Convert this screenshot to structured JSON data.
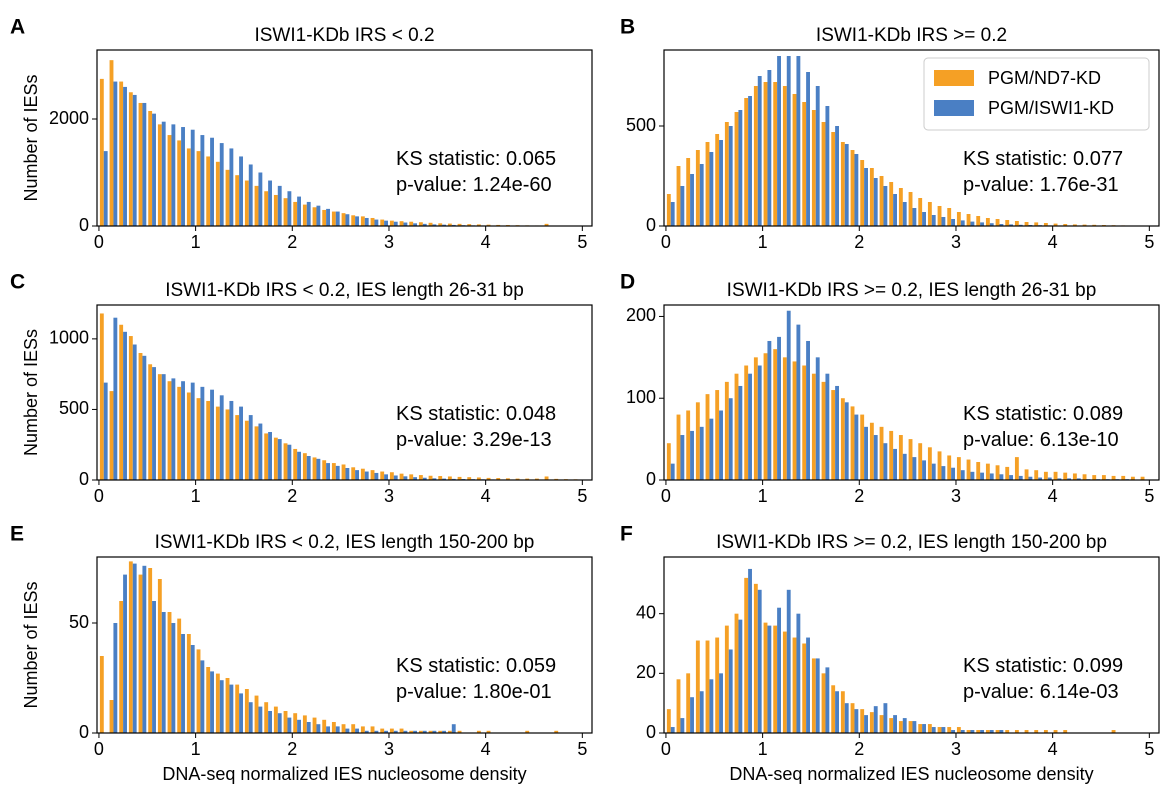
{
  "chart_data": [
    {
      "type": "histogram",
      "panel_label": "A",
      "title": "ISWI1-KDb IRS < 0.2",
      "y_label": "Number of IESs",
      "bins": [
        0,
        0.1,
        0.2,
        0.3,
        0.4,
        0.5,
        0.6,
        0.7,
        0.8,
        0.9,
        1,
        1.1,
        1.2,
        1.3,
        1.4,
        1.5,
        1.6,
        1.7,
        1.8,
        1.9,
        2,
        2.1,
        2.2,
        2.3,
        2.4,
        2.5,
        2.6,
        2.7,
        2.8,
        2.9,
        3,
        3.1,
        3.2,
        3.3,
        3.4,
        3.5,
        3.6,
        3.7,
        3.8,
        3.9,
        4,
        4.1,
        4.2,
        4.3,
        4.4,
        4.5,
        4.6,
        4.7,
        4.8,
        4.9,
        5
      ],
      "series": [
        {
          "color": "#f5a025",
          "values": [
            2750,
            3100,
            2700,
            2500,
            2300,
            2150,
            1900,
            1700,
            1600,
            1450,
            1400,
            1300,
            1200,
            1050,
            950,
            850,
            750,
            650,
            580,
            520,
            450,
            400,
            350,
            300,
            270,
            240,
            200,
            180,
            150,
            120,
            100,
            90,
            80,
            70,
            60,
            50,
            45,
            40,
            35,
            30,
            25,
            20,
            18,
            15,
            12,
            10,
            40,
            8,
            5,
            5
          ]
        },
        {
          "color": "#4a7fc4",
          "values": [
            1400,
            2700,
            2600,
            2450,
            2300,
            2100,
            1950,
            1900,
            1850,
            1800,
            1700,
            1650,
            1550,
            1450,
            1300,
            1150,
            1000,
            850,
            750,
            650,
            550,
            450,
            380,
            320,
            270,
            220,
            180,
            150,
            120,
            100,
            80,
            65,
            50,
            40,
            30,
            25,
            20,
            15,
            12,
            10,
            8,
            6,
            5,
            4,
            3,
            2,
            2,
            1,
            1,
            1
          ]
        }
      ],
      "xlim": [
        -0.02,
        5.1
      ],
      "xticks": [
        0,
        1,
        2,
        3,
        4,
        5
      ],
      "ylim": [
        0,
        3290
      ],
      "yticks": [
        0,
        2000
      ],
      "annotations": [
        "KS statistic: 0.065",
        "p-value: 1.24e-60"
      ]
    },
    {
      "type": "histogram",
      "panel_label": "B",
      "title": "ISWI1-KDb IRS >= 0.2",
      "bins": [
        0,
        0.1,
        0.2,
        0.3,
        0.4,
        0.5,
        0.6,
        0.7,
        0.8,
        0.9,
        1,
        1.1,
        1.2,
        1.3,
        1.4,
        1.5,
        1.6,
        1.7,
        1.8,
        1.9,
        2,
        2.1,
        2.2,
        2.3,
        2.4,
        2.5,
        2.6,
        2.7,
        2.8,
        2.9,
        3,
        3.1,
        3.2,
        3.3,
        3.4,
        3.5,
        3.6,
        3.7,
        3.8,
        3.9,
        4,
        4.1,
        4.2,
        4.3,
        4.4,
        4.5,
        4.6,
        4.7,
        4.8,
        4.9,
        5
      ],
      "series": [
        {
          "name": "PGM/ND7-KD",
          "color": "#f5a025",
          "values": [
            160,
            300,
            340,
            380,
            420,
            460,
            520,
            570,
            640,
            700,
            720,
            720,
            700,
            660,
            620,
            580,
            520,
            470,
            420,
            380,
            330,
            290,
            250,
            220,
            190,
            170,
            140,
            120,
            100,
            90,
            70,
            60,
            50,
            40,
            35,
            30,
            25,
            20,
            18,
            15,
            12,
            10,
            8,
            7,
            6,
            5,
            4,
            3,
            2,
            2
          ]
        },
        {
          "name": "PGM/ISWI1-KD",
          "color": "#4a7fc4",
          "values": [
            120,
            200,
            260,
            310,
            370,
            430,
            500,
            580,
            650,
            750,
            780,
            850,
            850,
            850,
            770,
            700,
            600,
            500,
            410,
            360,
            290,
            240,
            200,
            160,
            120,
            90,
            70,
            55,
            45,
            35,
            28,
            22,
            18,
            14,
            10,
            8,
            6,
            5,
            4,
            3,
            2,
            2,
            1,
            1,
            1,
            1,
            0,
            0,
            0,
            0
          ]
        }
      ],
      "xlim": [
        -0.02,
        5.1
      ],
      "xticks": [
        0,
        1,
        2,
        3,
        4,
        5
      ],
      "ylim": [
        0,
        880
      ],
      "yticks": [
        0,
        500
      ],
      "legend": "upper right",
      "annotations": [
        "KS statistic: 0.077",
        "p-value: 1.76e-31"
      ]
    },
    {
      "type": "histogram",
      "panel_label": "C",
      "title": "ISWI1-KDb IRS < 0.2, IES length 26-31 bp",
      "y_label": "Number of IESs",
      "bins": [
        0,
        0.1,
        0.2,
        0.3,
        0.4,
        0.5,
        0.6,
        0.7,
        0.8,
        0.9,
        1,
        1.1,
        1.2,
        1.3,
        1.4,
        1.5,
        1.6,
        1.7,
        1.8,
        1.9,
        2,
        2.1,
        2.2,
        2.3,
        2.4,
        2.5,
        2.6,
        2.7,
        2.8,
        2.9,
        3,
        3.1,
        3.2,
        3.3,
        3.4,
        3.5,
        3.6,
        3.7,
        3.8,
        3.9,
        4,
        4.1,
        4.2,
        4.3,
        4.4,
        4.5,
        4.6,
        4.7,
        4.8,
        4.9,
        5
      ],
      "series": [
        {
          "color": "#f5a025",
          "values": [
            1180,
            630,
            1100,
            1020,
            900,
            820,
            750,
            700,
            660,
            620,
            580,
            560,
            520,
            500,
            460,
            420,
            380,
            330,
            300,
            260,
            220,
            190,
            160,
            140,
            120,
            110,
            90,
            80,
            70,
            60,
            55,
            45,
            40,
            35,
            30,
            28,
            25,
            22,
            20,
            18,
            15,
            14,
            12,
            10,
            10,
            10,
            25,
            8,
            6,
            5
          ]
        },
        {
          "color": "#4a7fc4",
          "values": [
            690,
            1150,
            1050,
            960,
            880,
            800,
            750,
            720,
            700,
            690,
            660,
            640,
            600,
            560,
            520,
            460,
            400,
            340,
            290,
            250,
            200,
            170,
            150,
            120,
            100,
            85,
            70,
            60,
            50,
            40,
            32,
            26,
            20,
            16,
            12,
            10,
            8,
            7,
            6,
            5,
            4,
            3,
            3,
            2,
            2,
            1,
            1,
            1,
            1,
            1
          ]
        }
      ],
      "xlim": [
        -0.02,
        5.1
      ],
      "xticks": [
        0,
        1,
        2,
        3,
        4,
        5
      ],
      "ylim": [
        0,
        1240
      ],
      "yticks": [
        0,
        500,
        1000
      ],
      "annotations": [
        "KS statistic: 0.048",
        "p-value: 3.29e-13"
      ]
    },
    {
      "type": "histogram",
      "panel_label": "D",
      "title": "ISWI1-KDb IRS >= 0.2, IES length 26-31 bp",
      "bins": [
        0,
        0.1,
        0.2,
        0.3,
        0.4,
        0.5,
        0.6,
        0.7,
        0.8,
        0.9,
        1,
        1.1,
        1.2,
        1.3,
        1.4,
        1.5,
        1.6,
        1.7,
        1.8,
        1.9,
        2,
        2.1,
        2.2,
        2.3,
        2.4,
        2.5,
        2.6,
        2.7,
        2.8,
        2.9,
        3,
        3.1,
        3.2,
        3.3,
        3.4,
        3.5,
        3.6,
        3.7,
        3.8,
        3.9,
        4,
        4.1,
        4.2,
        4.3,
        4.4,
        4.5,
        4.6,
        4.7,
        4.8,
        4.9,
        5
      ],
      "series": [
        {
          "color": "#f5a025",
          "values": [
            45,
            80,
            85,
            95,
            105,
            110,
            120,
            130,
            140,
            150,
            155,
            160,
            150,
            145,
            140,
            130,
            120,
            110,
            100,
            90,
            80,
            70,
            65,
            60,
            55,
            50,
            45,
            40,
            35,
            30,
            28,
            25,
            22,
            20,
            18,
            16,
            28,
            13,
            12,
            10,
            10,
            9,
            8,
            7,
            6,
            6,
            5,
            5,
            4,
            4
          ]
        },
        {
          "color": "#4a7fc4",
          "values": [
            20,
            55,
            60,
            65,
            75,
            85,
            100,
            115,
            130,
            140,
            170,
            175,
            207,
            190,
            170,
            150,
            130,
            115,
            95,
            80,
            65,
            55,
            45,
            38,
            32,
            28,
            24,
            20,
            17,
            15,
            12,
            10,
            9,
            8,
            7,
            6,
            5,
            4,
            3,
            3,
            2,
            2,
            2,
            1,
            1,
            1,
            1,
            1,
            0,
            0
          ]
        }
      ],
      "xlim": [
        -0.02,
        5.1
      ],
      "xticks": [
        0,
        1,
        2,
        3,
        4,
        5
      ],
      "ylim": [
        0,
        214
      ],
      "yticks": [
        0,
        100,
        200
      ],
      "annotations": [
        "KS statistic: 0.089",
        "p-value: 6.13e-10"
      ]
    },
    {
      "type": "histogram",
      "panel_label": "E",
      "title": "ISWI1-KDb IRS < 0.2, IES length 150-200 bp",
      "y_label": "Number of IESs",
      "x_label": "DNA-seq normalized IES nucleosome density",
      "bins": [
        0,
        0.1,
        0.2,
        0.3,
        0.4,
        0.5,
        0.6,
        0.7,
        0.8,
        0.9,
        1,
        1.1,
        1.2,
        1.3,
        1.4,
        1.5,
        1.6,
        1.7,
        1.8,
        1.9,
        2,
        2.1,
        2.2,
        2.3,
        2.4,
        2.5,
        2.6,
        2.7,
        2.8,
        2.9,
        3,
        3.1,
        3.2,
        3.3,
        3.4,
        3.5,
        3.6,
        3.7,
        3.8,
        3.9,
        4,
        4.1,
        4.2,
        4.3,
        4.4,
        4.5,
        4.6,
        4.7,
        4.8,
        4.9,
        5
      ],
      "series": [
        {
          "color": "#f5a025",
          "values": [
            35,
            15,
            60,
            78,
            72,
            75,
            70,
            55,
            52,
            45,
            38,
            30,
            27,
            25,
            22,
            20,
            17,
            14,
            12,
            10,
            9,
            8,
            7,
            6,
            5,
            4,
            4,
            3,
            3,
            2,
            2,
            2,
            1,
            1,
            1,
            1,
            1,
            1,
            0,
            1,
            1,
            0,
            0,
            0,
            1,
            0,
            0,
            1,
            0,
            0
          ]
        },
        {
          "color": "#4a7fc4",
          "values": [
            0,
            50,
            72,
            77,
            76,
            60,
            55,
            50,
            45,
            40,
            33,
            28,
            24,
            22,
            18,
            14,
            12,
            10,
            9,
            7,
            6,
            5,
            4,
            3,
            3,
            2,
            2,
            1,
            1,
            1,
            1,
            1,
            1,
            1,
            1,
            1,
            4,
            0,
            0,
            0,
            0,
            0,
            0,
            0,
            0,
            0,
            0,
            0,
            0,
            0
          ]
        }
      ],
      "xlim": [
        -0.02,
        5.1
      ],
      "xticks": [
        0,
        1,
        2,
        3,
        4,
        5
      ],
      "ylim": [
        0,
        80
      ],
      "yticks": [
        0,
        50
      ],
      "annotations": [
        "KS statistic: 0.059",
        "p-value: 1.80e-01"
      ]
    },
    {
      "type": "histogram",
      "panel_label": "F",
      "title": "ISWI1-KDb IRS >= 0.2, IES length 150-200 bp",
      "x_label": "DNA-seq normalized IES nucleosome density",
      "bins": [
        0,
        0.1,
        0.2,
        0.3,
        0.4,
        0.5,
        0.6,
        0.7,
        0.8,
        0.9,
        1,
        1.1,
        1.2,
        1.3,
        1.4,
        1.5,
        1.6,
        1.7,
        1.8,
        1.9,
        2,
        2.1,
        2.2,
        2.3,
        2.4,
        2.5,
        2.6,
        2.7,
        2.8,
        2.9,
        3,
        3.1,
        3.2,
        3.3,
        3.4,
        3.5,
        3.6,
        3.7,
        3.8,
        3.9,
        4,
        4.1,
        4.2,
        4.3,
        4.4,
        4.5,
        4.6,
        4.7,
        4.8,
        4.9,
        5
      ],
      "series": [
        {
          "color": "#f5a025",
          "values": [
            8,
            18,
            20,
            31,
            31,
            32,
            36,
            40,
            52,
            50,
            37,
            36,
            34,
            32,
            30,
            25,
            20,
            16,
            14,
            10,
            8,
            7,
            6,
            5,
            4,
            4,
            3,
            3,
            2,
            2,
            2,
            1,
            1,
            1,
            1,
            1,
            1,
            1,
            1,
            1,
            1,
            1,
            0,
            0,
            0,
            0,
            1,
            0,
            0,
            0
          ]
        },
        {
          "color": "#4a7fc4",
          "values": [
            2,
            5,
            12,
            14,
            18,
            20,
            28,
            38,
            55,
            48,
            36,
            42,
            48,
            40,
            32,
            25,
            22,
            14,
            10,
            8,
            6,
            9,
            10,
            6,
            5,
            4,
            3,
            2,
            2,
            1,
            1,
            1,
            1,
            1,
            1,
            0,
            0,
            0,
            0,
            0,
            0,
            0,
            0,
            0,
            0,
            0,
            0,
            0,
            0,
            0
          ]
        }
      ],
      "xlim": [
        -0.02,
        5.1
      ],
      "xticks": [
        0,
        1,
        2,
        3,
        4,
        5
      ],
      "ylim": [
        0,
        59
      ],
      "yticks": [
        0,
        20,
        40
      ],
      "annotations": [
        "KS statistic: 0.099",
        "p-value: 6.14e-03"
      ]
    }
  ]
}
